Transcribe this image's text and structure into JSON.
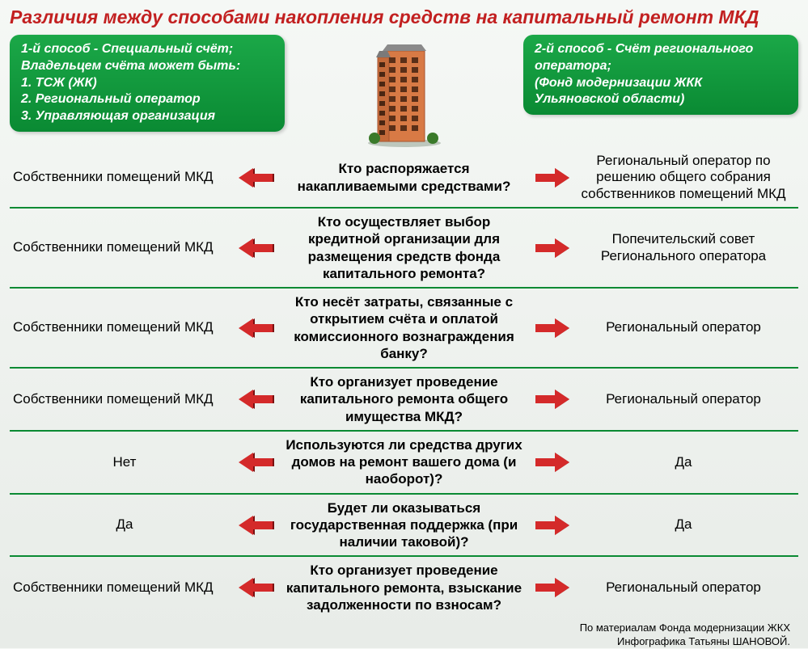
{
  "title": {
    "text": "Различия между способами накопления средств на капитальный ремонт МКД",
    "color": "#c22020"
  },
  "method1": {
    "heading": "1-й способ - Специальный счёт;",
    "sub": "Владельцем счёта может быть:",
    "items": [
      "1. ТСЖ (ЖК)",
      "2. Региональный оператор",
      "3. Управляющая организация"
    ]
  },
  "method2": {
    "heading": "2-й способ - Счёт регионального оператора;",
    "sub": "(Фонд модернизации ЖКК Ульяновской области)"
  },
  "colors": {
    "green_divider": "#0a8a33",
    "arrow_fill": "#d42a2a",
    "arrow_shadow": "#7a0f0f",
    "building_body": "#d87a45",
    "building_edge": "#a65430",
    "building_roof": "#6b6b6b"
  },
  "rows": [
    {
      "left": "Собственники помещений МКД",
      "center": "Кто распоряжается накапливаемыми средствами?",
      "right": "Региональный оператор по решению общего собрания собственников помещений МКД"
    },
    {
      "left": "Собственники помещений МКД",
      "center": "Кто осуществляет выбор кредитной организации для размещения средств фонда капитального ремонта?",
      "right": "Попечительский совет Регионального оператора"
    },
    {
      "left": "Собственники помещений МКД",
      "center": "Кто несёт затраты, связанные с открытием счёта и оплатой комиссионного вознаграждения банку?",
      "right": "Региональный оператор"
    },
    {
      "left": "Собственники помещений МКД",
      "center": "Кто организует проведение капитального ремонта общего имущества МКД?",
      "right": "Региональный оператор"
    },
    {
      "left": "Нет",
      "center": "Используются ли средства других домов на ремонт вашего дома (и наоборот)?",
      "right": "Да"
    },
    {
      "left": "Да",
      "center": "Будет ли оказываться государственная поддержка (при наличии таковой)?",
      "right": "Да"
    },
    {
      "left": "Собственники помещений МКД",
      "center": "Кто организует проведение капитального ремонта, взыскание задолженности по взносам?",
      "right": "Региональный оператор"
    }
  ],
  "credit": {
    "line1": "По материалам Фонда модернизации ЖКХ",
    "line2": "Инфографика Татьяны ШАНОВОЙ."
  }
}
